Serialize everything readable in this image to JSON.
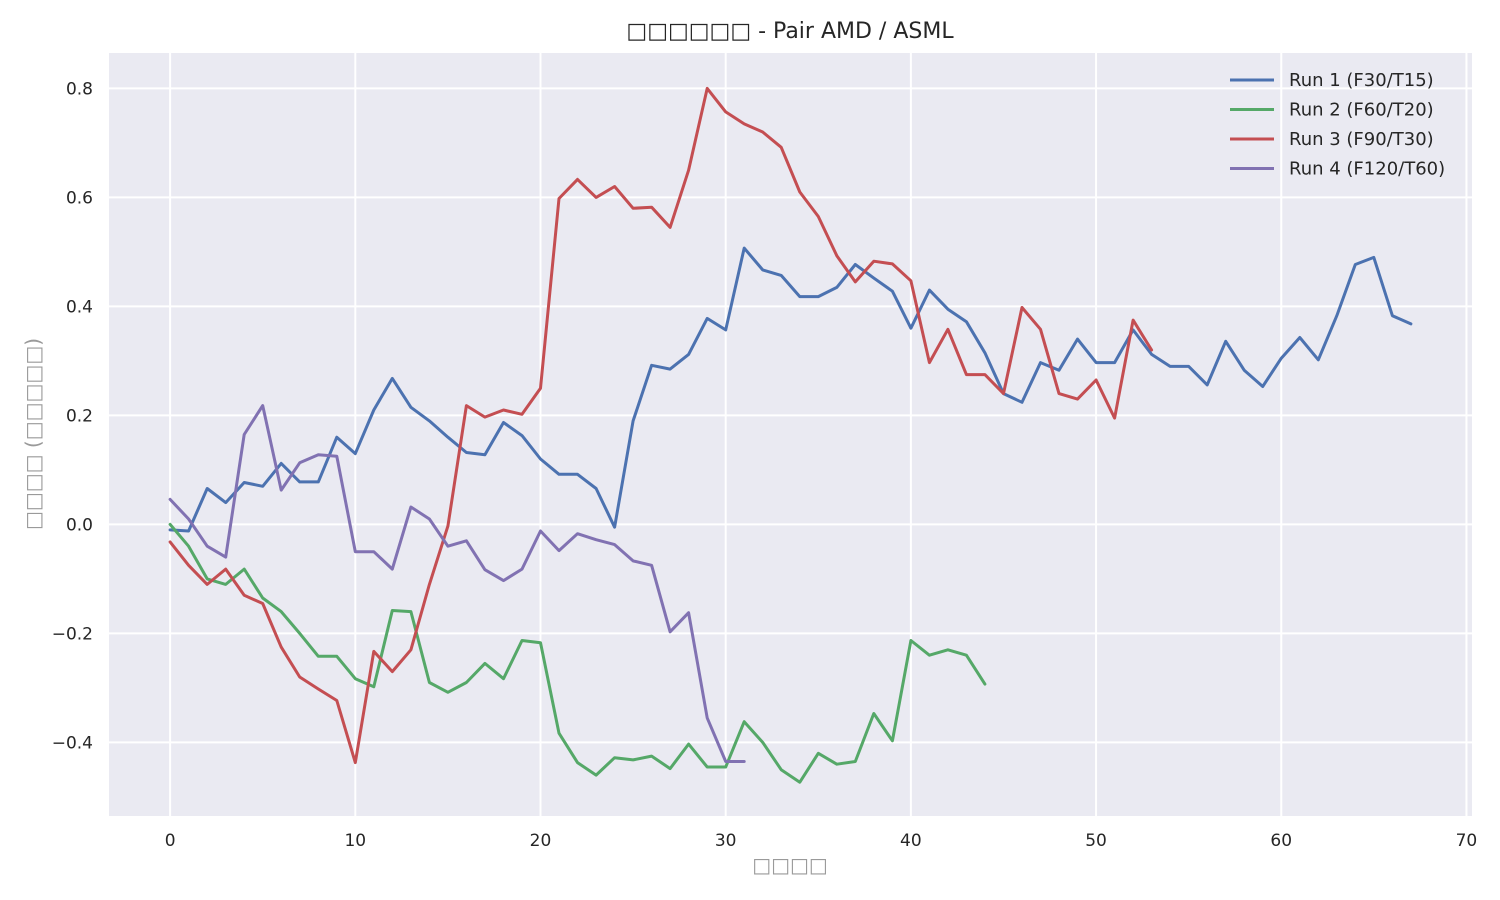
{
  "chart_data": {
    "type": "line",
    "title": "□□□□□□ - Pair AMD / ASML",
    "xlabel": "□□□□",
    "ylabel": "□□□□ (□□□□□)",
    "xlim": [
      -3.3,
      70.3
    ],
    "ylim": [
      -0.535,
      0.865
    ],
    "xticks": [
      0,
      10,
      20,
      30,
      40,
      50,
      60,
      70
    ],
    "yticks": [
      0.8,
      0.6,
      0.4,
      0.2,
      0.0,
      -0.2,
      -0.4
    ],
    "ytick_labels": [
      "0.8",
      "0.6",
      "0.4",
      "0.2",
      "0.0",
      "−0.2",
      "−0.4"
    ],
    "grid": true,
    "legend_position": "top-right",
    "series": [
      {
        "name": "Run 1 (F30/T15)",
        "color": "#4c72b0",
        "values": [
          -0.01,
          -0.012,
          0.066,
          0.04,
          0.077,
          0.07,
          0.112,
          0.078,
          0.078,
          0.16,
          0.13,
          0.21,
          0.268,
          0.215,
          0.19,
          0.16,
          0.132,
          0.128,
          0.187,
          0.163,
          0.12,
          0.092,
          0.092,
          0.066,
          -0.005,
          0.19,
          0.292,
          0.285,
          0.312,
          0.378,
          0.357,
          0.507,
          0.467,
          0.457,
          0.418,
          0.418,
          0.435,
          0.477,
          0.452,
          0.428,
          0.36,
          0.43,
          0.395,
          0.372,
          0.315,
          0.24,
          0.224,
          0.297,
          0.283,
          0.34,
          0.297,
          0.297,
          0.357,
          0.312,
          0.29,
          0.29,
          0.256,
          0.336,
          0.283,
          0.253,
          0.305,
          0.343,
          0.302,
          0.383,
          0.477,
          0.49,
          0.383,
          0.368
        ]
      },
      {
        "name": "Run 2 (F60/T20)",
        "color": "#55a868",
        "values": [
          0.0,
          -0.04,
          -0.1,
          -0.11,
          -0.082,
          -0.135,
          -0.16,
          -0.2,
          -0.242,
          -0.242,
          -0.283,
          -0.298,
          -0.158,
          -0.16,
          -0.29,
          -0.308,
          -0.29,
          -0.255,
          -0.283,
          -0.213,
          -0.217,
          -0.383,
          -0.437,
          -0.46,
          -0.428,
          -0.432,
          -0.425,
          -0.448,
          -0.403,
          -0.445,
          -0.445,
          -0.362,
          -0.4,
          -0.45,
          -0.473,
          -0.42,
          -0.44,
          -0.435,
          -0.347,
          -0.397,
          -0.213,
          -0.24,
          -0.23,
          -0.24,
          -0.293
        ]
      },
      {
        "name": "Run 3 (F90/T30)",
        "color": "#c44e52",
        "values": [
          -0.032,
          -0.075,
          -0.11,
          -0.082,
          -0.13,
          -0.145,
          -0.225,
          -0.28,
          -0.302,
          -0.323,
          -0.437,
          -0.233,
          -0.27,
          -0.23,
          -0.11,
          -0.003,
          0.218,
          0.197,
          0.21,
          0.202,
          0.25,
          0.598,
          0.633,
          0.6,
          0.62,
          0.58,
          0.582,
          0.545,
          0.65,
          0.8,
          0.757,
          0.735,
          0.72,
          0.692,
          0.61,
          0.565,
          0.493,
          0.445,
          0.483,
          0.478,
          0.447,
          0.297,
          0.358,
          0.275,
          0.275,
          0.24,
          0.398,
          0.358,
          0.24,
          0.23,
          0.265,
          0.195,
          0.375,
          0.32
        ]
      },
      {
        "name": "Run 4 (F120/T60)",
        "color": "#8172b2",
        "values": [
          0.046,
          0.01,
          -0.04,
          -0.06,
          0.165,
          0.218,
          0.063,
          0.113,
          0.128,
          0.125,
          -0.05,
          -0.05,
          -0.082,
          0.032,
          0.01,
          -0.04,
          -0.03,
          -0.083,
          -0.103,
          -0.082,
          -0.012,
          -0.048,
          -0.017,
          -0.028,
          -0.037,
          -0.067,
          -0.075,
          -0.197,
          -0.162,
          -0.355,
          -0.435,
          -0.435
        ]
      }
    ]
  }
}
